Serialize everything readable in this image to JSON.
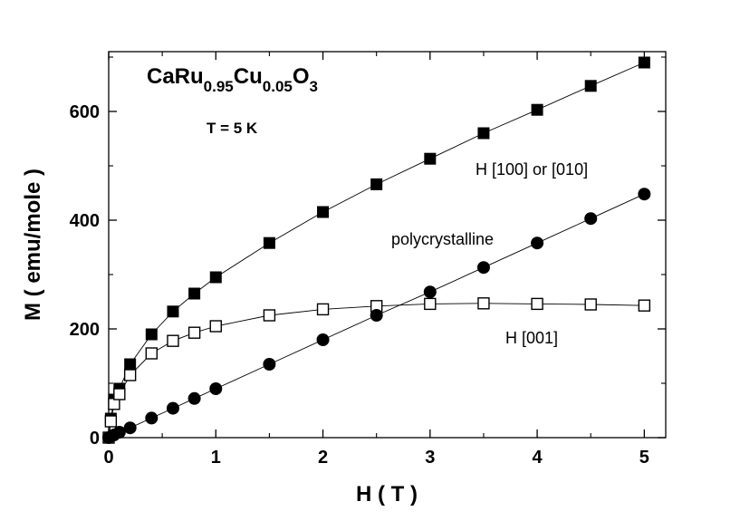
{
  "chart_data": {
    "type": "scatter",
    "title": "",
    "compound": {
      "parts": [
        {
          "text": "CaRu",
          "sub": false
        },
        {
          "text": "0.95",
          "sub": true
        },
        {
          "text": "Cu",
          "sub": false
        },
        {
          "text": "0.05",
          "sub": true
        },
        {
          "text": "O",
          "sub": false
        },
        {
          "text": "3",
          "sub": true
        }
      ]
    },
    "temperature_label": "T = 5 K",
    "xlabel": "H ( T )",
    "ylabel": "M ( emu/mole )",
    "xlim": [
      0,
      5.2
    ],
    "ylim": [
      0,
      710
    ],
    "xticks": [
      0,
      1,
      2,
      3,
      4,
      5
    ],
    "yticks": [
      0,
      200,
      400,
      600
    ],
    "grid": false,
    "series": [
      {
        "name": "H  [100] or [010]",
        "marker": "filled-square",
        "x": [
          0,
          0.02,
          0.05,
          0.1,
          0.2,
          0.4,
          0.6,
          0.8,
          1.0,
          1.5,
          2.0,
          2.5,
          3.0,
          3.5,
          4.0,
          4.5,
          5.0
        ],
        "y": [
          0,
          35,
          70,
          90,
          135,
          190,
          232,
          265,
          295,
          358,
          415,
          466,
          513,
          560,
          603,
          647,
          690
        ]
      },
      {
        "name": "H [001]",
        "marker": "open-square",
        "x": [
          0,
          0.02,
          0.05,
          0.1,
          0.2,
          0.4,
          0.6,
          0.8,
          1.0,
          1.5,
          2.0,
          2.5,
          3.0,
          3.5,
          4.0,
          4.5,
          5.0
        ],
        "y": [
          0,
          30,
          62,
          80,
          115,
          155,
          178,
          193,
          205,
          225,
          236,
          242,
          246,
          247,
          246,
          245,
          243
        ]
      },
      {
        "name": "polycrystalline",
        "marker": "filled-circle",
        "x": [
          0,
          0.05,
          0.1,
          0.2,
          0.4,
          0.6,
          0.8,
          1.0,
          1.5,
          2.0,
          2.5,
          3.0,
          3.5,
          4.0,
          4.5,
          5.0
        ],
        "y": [
          0,
          5,
          10,
          18,
          36,
          54,
          72,
          90,
          135,
          180,
          225,
          268,
          313,
          358,
          403,
          448
        ]
      }
    ]
  }
}
